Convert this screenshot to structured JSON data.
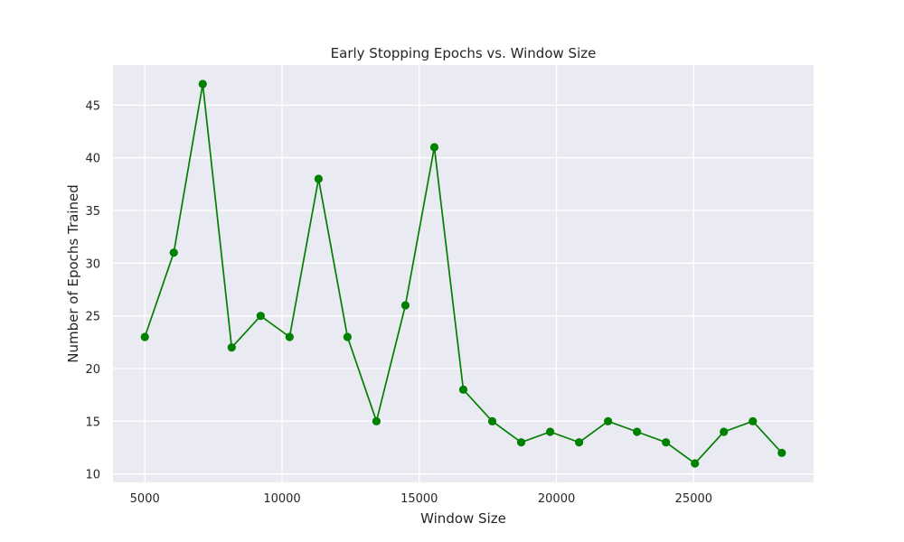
{
  "chart_data": {
    "type": "line",
    "title": "Early Stopping Epochs vs. Window Size",
    "xlabel": "Window Size",
    "ylabel": "Number of Epochs Trained",
    "x": [
      5000,
      6055,
      7110,
      8165,
      9220,
      10275,
      11330,
      12385,
      13440,
      14495,
      15550,
      16605,
      17660,
      18715,
      19770,
      20825,
      21880,
      22935,
      23990,
      25045,
      26100,
      27155,
      28210
    ],
    "series": [
      {
        "values": [
          23,
          31,
          47,
          22,
          25,
          23,
          38,
          23,
          15,
          26,
          41,
          18,
          15,
          13,
          14,
          13,
          15,
          14,
          13,
          11,
          14,
          15,
          12
        ]
      }
    ],
    "xticks": [
      5000,
      10000,
      15000,
      20000,
      25000
    ],
    "yticks": [
      10,
      15,
      20,
      25,
      30,
      35,
      40,
      45
    ],
    "xlim": [
      3840,
      29370
    ],
    "ylim": [
      9.2,
      48.8
    ],
    "grid": true,
    "line_color": "#008000",
    "background_color": "#eaeaf2",
    "grid_color": "#ffffff"
  }
}
